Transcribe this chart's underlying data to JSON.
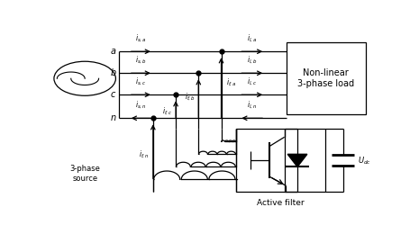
{
  "bg_color": "#ffffff",
  "line_color": "#000000",
  "fig_width": 4.65,
  "fig_height": 2.6,
  "dpi": 100,
  "phase_labels": [
    "a",
    "b",
    "c",
    "n"
  ],
  "source_label": "3-phase\nsource",
  "nonlinear_label": "Non-linear\n3-phase load",
  "active_filter_label": "Active filter",
  "U_dc_label": "U_{dc}",
  "font_size": 7,
  "small_font": 5.5
}
